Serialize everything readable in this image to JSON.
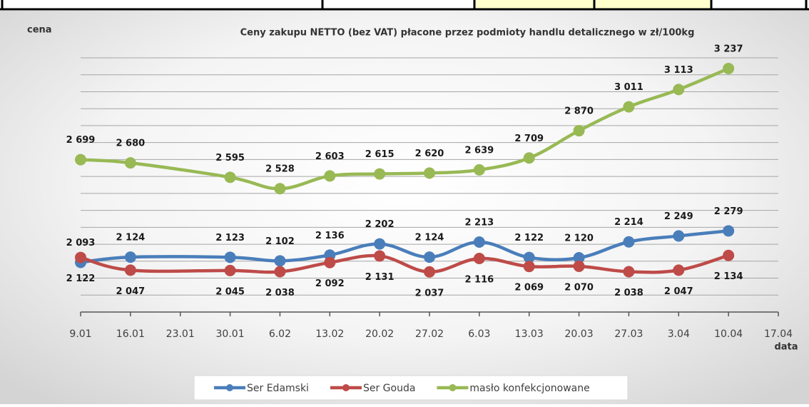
{
  "chart_data": {
    "type": "line",
    "title": "Ceny zakupu NETTO (bez VAT) płacone przez podmioty handlu detalicznego w zł/100kg",
    "y_label": "cena",
    "x_label": "data",
    "xticks": [
      "9.01",
      "16.01",
      "23.01",
      "30.01",
      "6.02",
      "13.02",
      "20.02",
      "27.02",
      "6.03",
      "13.03",
      "20.03",
      "27.03",
      "3.04",
      "10.04",
      "17.04"
    ],
    "x": [
      "9.01",
      "16.01",
      "30.01",
      "6.02",
      "13.02",
      "20.02",
      "27.02",
      "6.03",
      "13.03",
      "20.03",
      "27.03",
      "3.04",
      "10.04"
    ],
    "ylim": [
      1800,
      3300
    ],
    "yticks": [
      1800,
      1900,
      2000,
      2100,
      2200,
      2300,
      2400,
      2500,
      2600,
      2700,
      2800,
      2900,
      3000,
      3100,
      3200,
      3300
    ],
    "grid": true,
    "legend": "bottom",
    "series": [
      {
        "name": "Ser Edamski",
        "color": "#4a7ebb",
        "values": [
          2093,
          2124,
          2123,
          2102,
          2136,
          2202,
          2124,
          2213,
          2122,
          2120,
          2214,
          2249,
          2279
        ],
        "value_labels": [
          "2 093",
          "2 124",
          "2 123",
          "2 102",
          "2 136",
          "2 202",
          "2 124",
          "2 213",
          "2 122",
          "2 120",
          "2 214",
          "2 249",
          "2 279"
        ]
      },
      {
        "name": "Ser Gouda",
        "color": "#be4b48",
        "values": [
          2122,
          2047,
          2045,
          2038,
          2092,
          2131,
          2037,
          2116,
          2069,
          2070,
          2038,
          2047,
          2134
        ],
        "value_labels": [
          "2 122",
          "2 047",
          "2 045",
          "2 038",
          "2 092",
          "2 131",
          "2 037",
          "2 116",
          "2 069",
          "2 070",
          "2 038",
          "2 047",
          "2 134"
        ]
      },
      {
        "name": "masło konfekcjonowane",
        "color": "#98b954",
        "values": [
          2699,
          2680,
          2595,
          2528,
          2603,
          2615,
          2620,
          2639,
          2709,
          2870,
          3011,
          3113,
          3237
        ],
        "value_labels": [
          "2 699",
          "2 680",
          "2 595",
          "2 528",
          "2 603",
          "2 615",
          "2 620",
          "2 639",
          "2 709",
          "2 870",
          "3 011",
          "3 113",
          "3 237"
        ]
      }
    ]
  }
}
